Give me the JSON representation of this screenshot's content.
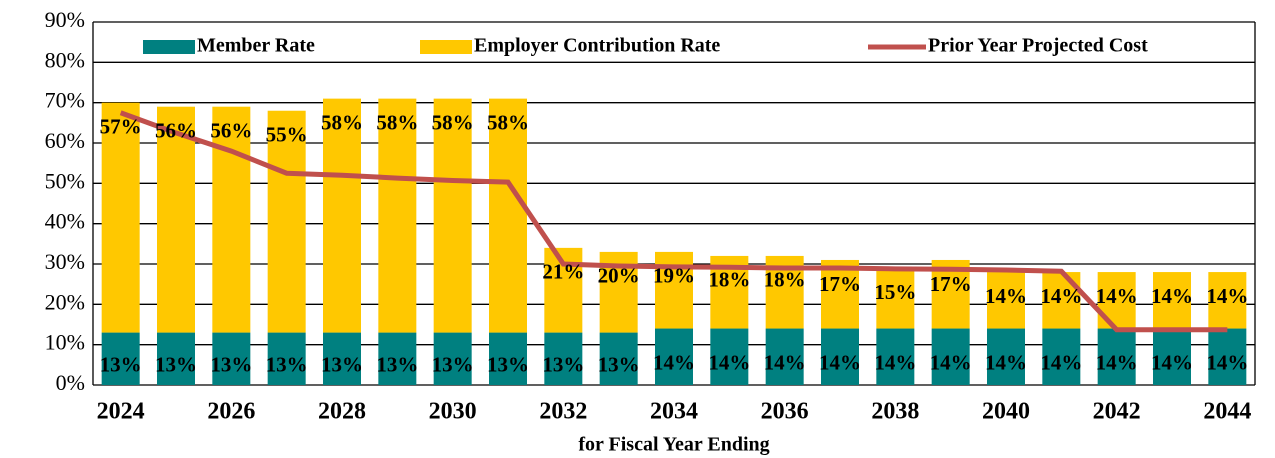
{
  "chart_data": {
    "type": "bar",
    "stacked": true,
    "x_label": "for Fiscal Year Ending",
    "categories": [
      "2024",
      null,
      "2026",
      null,
      "2028",
      null,
      "2030",
      null,
      "2032",
      null,
      "2034",
      null,
      "2036",
      null,
      "2038",
      null,
      "2040",
      null,
      "2042",
      null,
      "2044"
    ],
    "series": [
      {
        "name": "Member Rate",
        "color": "#008080",
        "type": "bar",
        "values": [
          13,
          13,
          13,
          13,
          13,
          13,
          13,
          13,
          13,
          13,
          14,
          14,
          14,
          14,
          14,
          14,
          14,
          14,
          14,
          14,
          14
        ],
        "value_labels": [
          "13%",
          "13%",
          "13%",
          "13%",
          "13%",
          "13%",
          "13%",
          "13%",
          "13%",
          "13%",
          "14%",
          "14%",
          "14%",
          "14%",
          "14%",
          "14%",
          "14%",
          "14%",
          "14%",
          "14%",
          "14%"
        ]
      },
      {
        "name": "Employer Contribution Rate",
        "color": "#ffc800",
        "type": "bar",
        "values": [
          57,
          56,
          56,
          55,
          58,
          58,
          58,
          58,
          21,
          20,
          19,
          18,
          18,
          17,
          15,
          17,
          14,
          14,
          14,
          14,
          14
        ],
        "value_labels": [
          "57%",
          "56%",
          "56%",
          "55%",
          "58%",
          "58%",
          "58%",
          "58%",
          "21%",
          "20%",
          "19%",
          "18%",
          "18%",
          "17%",
          "15%",
          "17%",
          "14%",
          "14%",
          "14%",
          "14%",
          "14%"
        ]
      },
      {
        "name": "Prior Year Projected Cost",
        "color": "#c0504d",
        "type": "line",
        "values": [
          67.5,
          62.5,
          58,
          52.5,
          52,
          51.3,
          50.7,
          50.3,
          30,
          29.5,
          29.3,
          29.2,
          29,
          29,
          28.8,
          28.7,
          28.5,
          28.2,
          13.7,
          13.7,
          13.7
        ]
      }
    ],
    "ylim": [
      0,
      90
    ],
    "yticks": [
      {
        "value": 0,
        "label": "0%"
      },
      {
        "value": 10,
        "label": "10%"
      },
      {
        "value": 20,
        "label": "20%"
      },
      {
        "value": 30,
        "label": "30%"
      },
      {
        "value": 40,
        "label": "40%"
      },
      {
        "value": 50,
        "label": "50%"
      },
      {
        "value": 60,
        "label": "60%"
      },
      {
        "value": 70,
        "label": "70%"
      },
      {
        "value": 80,
        "label": "80%"
      },
      {
        "value": 90,
        "label": "90%"
      }
    ],
    "grid": true,
    "legend": "top"
  }
}
